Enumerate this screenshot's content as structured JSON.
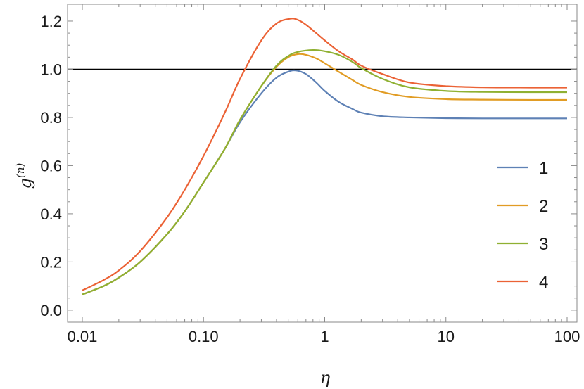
{
  "chart_data": {
    "type": "line",
    "xlabel": "η",
    "ylabel_base": "g",
    "ylabel_sup": "(n)",
    "xscale": "log",
    "xlim": [
      0.01,
      100
    ],
    "ylim": [
      -0.05,
      1.27
    ],
    "xticks": [
      {
        "value": 0.01,
        "label": "0.01"
      },
      {
        "value": 0.1,
        "label": "0.10"
      },
      {
        "value": 1,
        "label": "1"
      },
      {
        "value": 10,
        "label": "10"
      },
      {
        "value": 100,
        "label": "100"
      }
    ],
    "yticks": [
      {
        "value": 0.0,
        "label": "0.0"
      },
      {
        "value": 0.2,
        "label": "0.2"
      },
      {
        "value": 0.4,
        "label": "0.4"
      },
      {
        "value": 0.6,
        "label": "0.6"
      },
      {
        "value": 0.8,
        "label": "0.8"
      },
      {
        "value": 1.0,
        "label": "1.0"
      },
      {
        "value": 1.2,
        "label": "1.2"
      }
    ],
    "reference_line": {
      "y": 1.0,
      "color": "#000000"
    },
    "legend_position": "right",
    "grid": false,
    "series": [
      {
        "name": "1",
        "color": "#5e81b5",
        "x": [
          0.01,
          0.015,
          0.02,
          0.03,
          0.05,
          0.07,
          0.1,
          0.15,
          0.2,
          0.3,
          0.4,
          0.5,
          0.58,
          0.7,
          0.85,
          1,
          1.3,
          1.7,
          2,
          3,
          5,
          10,
          20,
          50,
          100
        ],
        "y": [
          0.065,
          0.1,
          0.135,
          0.2,
          0.315,
          0.41,
          0.53,
          0.67,
          0.78,
          0.9,
          0.965,
          0.99,
          0.995,
          0.98,
          0.945,
          0.91,
          0.865,
          0.835,
          0.82,
          0.805,
          0.8,
          0.797,
          0.796,
          0.796,
          0.796
        ]
      },
      {
        "name": "2",
        "color": "#e19c24",
        "x": [
          0.01,
          0.015,
          0.02,
          0.03,
          0.05,
          0.07,
          0.1,
          0.15,
          0.2,
          0.3,
          0.4,
          0.5,
          0.6,
          0.7,
          0.85,
          1,
          1.3,
          1.7,
          2,
          3,
          5,
          10,
          20,
          50,
          100
        ],
        "y": [
          0.065,
          0.1,
          0.135,
          0.2,
          0.315,
          0.41,
          0.53,
          0.67,
          0.79,
          0.93,
          1.01,
          1.05,
          1.063,
          1.06,
          1.045,
          1.025,
          0.99,
          0.955,
          0.935,
          0.905,
          0.885,
          0.876,
          0.874,
          0.873,
          0.873
        ]
      },
      {
        "name": "3",
        "color": "#8fb032",
        "x": [
          0.01,
          0.015,
          0.02,
          0.03,
          0.05,
          0.07,
          0.1,
          0.15,
          0.2,
          0.3,
          0.4,
          0.5,
          0.6,
          0.8,
          1,
          1.3,
          1.7,
          2,
          3,
          5,
          10,
          20,
          50,
          100
        ],
        "y": [
          0.065,
          0.1,
          0.135,
          0.2,
          0.315,
          0.41,
          0.53,
          0.67,
          0.79,
          0.93,
          1.015,
          1.055,
          1.072,
          1.08,
          1.075,
          1.06,
          1.03,
          1.005,
          0.96,
          0.925,
          0.91,
          0.906,
          0.905,
          0.905
        ]
      },
      {
        "name": "4",
        "color": "#eb6235",
        "x": [
          0.01,
          0.015,
          0.02,
          0.03,
          0.05,
          0.07,
          0.1,
          0.15,
          0.2,
          0.3,
          0.4,
          0.52,
          0.6,
          0.7,
          0.85,
          1,
          1.3,
          1.7,
          2,
          3,
          5,
          10,
          20,
          50,
          100
        ],
        "y": [
          0.082,
          0.125,
          0.165,
          0.245,
          0.385,
          0.5,
          0.64,
          0.82,
          0.96,
          1.12,
          1.19,
          1.21,
          1.205,
          1.185,
          1.15,
          1.12,
          1.075,
          1.04,
          1.015,
          0.98,
          0.945,
          0.93,
          0.925,
          0.924,
          0.924
        ]
      }
    ]
  }
}
